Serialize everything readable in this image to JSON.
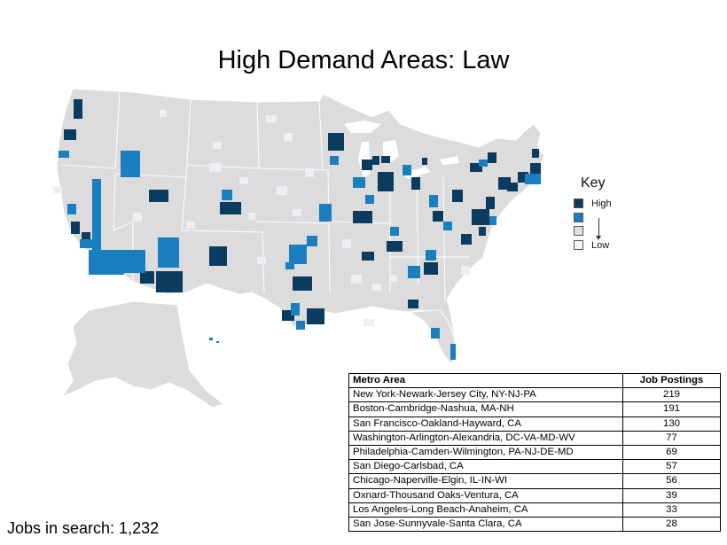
{
  "title": "High Demand Areas: Law",
  "key": {
    "title": "Key",
    "levels": [
      {
        "label": "High",
        "color": "#0b3c5f"
      },
      {
        "label": "",
        "color": "#1a7fbf"
      },
      {
        "label": "",
        "color": "#e0e0e0"
      },
      {
        "label": "Low",
        "color": "#f5f5fa"
      }
    ]
  },
  "map_colors": {
    "land": "#dcdcdc",
    "border": "#ffffff",
    "dark": "#0b3c5f",
    "medium": "#1a7fbf",
    "light": "#eeeef4"
  },
  "table": {
    "headers": [
      "Metro Area",
      "Job Postings"
    ],
    "rows": [
      [
        "New York-Newark-Jersey City, NY-NJ-PA",
        "219"
      ],
      [
        "Boston-Cambridge-Nashua, MA-NH",
        "191"
      ],
      [
        "San Francisco-Oakland-Hayward, CA",
        "130"
      ],
      [
        "Washington-Arlington-Alexandria, DC-VA-MD-WV",
        "77"
      ],
      [
        "Philadelphia-Camden-Wilmington, PA-NJ-DE-MD",
        "69"
      ],
      [
        "San Diego-Carlsbad, CA",
        "57"
      ],
      [
        "Chicago-Naperville-Elgin, IL-IN-WI",
        "56"
      ],
      [
        "Oxnard-Thousand Oaks-Ventura, CA",
        "39"
      ],
      [
        "Los Angeles-Long Beach-Anaheim, CA",
        "33"
      ],
      [
        "San Jose-Sunnyvale-Santa Clara, CA",
        "28"
      ]
    ]
  },
  "jobs_in_search": "Jobs in search: 1,232"
}
